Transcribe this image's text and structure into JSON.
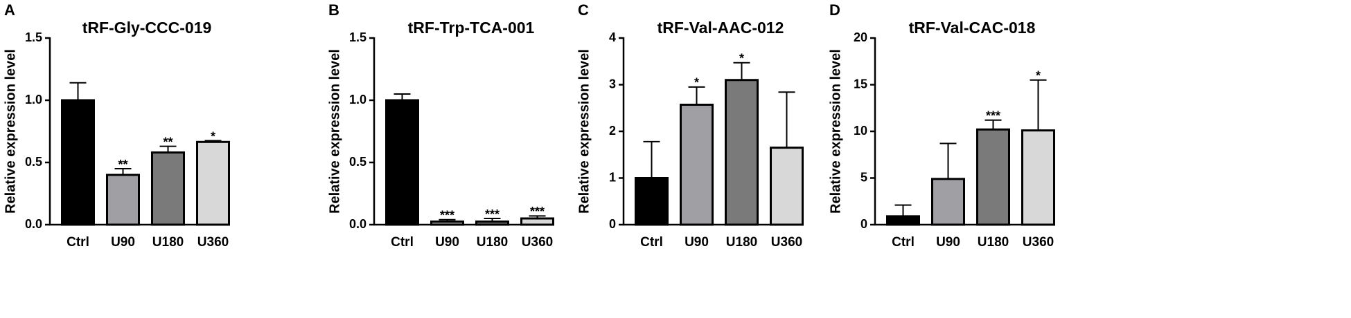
{
  "chart_data": [
    {
      "type": "bar",
      "panel_label": "A",
      "title": "tRF-Gly-CCC-019",
      "y_label": "Relative expression level",
      "categories": [
        "Ctrl",
        "U90",
        "U180",
        "U360"
      ],
      "values": [
        1.0,
        0.4,
        0.58,
        0.665
      ],
      "errors": [
        0.14,
        0.05,
        0.05,
        0.01
      ],
      "significance": [
        null,
        "**",
        "**",
        "*"
      ],
      "colors": [
        "#000000",
        "#a0a0a4",
        "#7a7a7a",
        "#d8d8d8"
      ],
      "ylim": [
        0,
        1.5
      ],
      "yticks": [
        {
          "value": 0,
          "label": "0.0"
        },
        0.5,
        {
          "value": 1,
          "label": "1.0"
        },
        1.5
      ]
    },
    {
      "type": "bar",
      "panel_label": "B",
      "title": "tRF-Trp-TCA-001",
      "y_label": "Relative expression level",
      "categories": [
        "Ctrl",
        "U90",
        "U180",
        "U360"
      ],
      "values": [
        1.0,
        0.025,
        0.025,
        0.05
      ],
      "errors": [
        0.05,
        0.015,
        0.025,
        0.02
      ],
      "significance": [
        null,
        "***",
        "***",
        "***"
      ],
      "colors": [
        "#000000",
        "#a0a0a4",
        "#7a7a7a",
        "#d8d8d8"
      ],
      "ylim": [
        0,
        1.5
      ],
      "yticks": [
        {
          "value": 0,
          "label": "0.0"
        },
        0.5,
        {
          "value": 1,
          "label": "1.0"
        },
        1.5
      ]
    },
    {
      "type": "bar",
      "panel_label": "C",
      "title": "tRF-Val-AAC-012",
      "y_label": "Relative expression level",
      "categories": [
        "Ctrl",
        "U90",
        "U180",
        "U360"
      ],
      "values": [
        1.0,
        2.57,
        3.1,
        1.65
      ],
      "errors": [
        0.78,
        0.38,
        0.37,
        1.19
      ],
      "significance": [
        null,
        "*",
        "*",
        null
      ],
      "colors": [
        "#000000",
        "#a0a0a4",
        "#7a7a7a",
        "#d8d8d8"
      ],
      "ylim": [
        0,
        4
      ],
      "yticks": [
        0,
        1,
        2,
        3,
        4
      ]
    },
    {
      "type": "bar",
      "panel_label": "D",
      "title": "tRF-Val-CAC-018",
      "y_label": "Relative expression level",
      "categories": [
        "Ctrl",
        "U90",
        "U180",
        "U360"
      ],
      "values": [
        0.9,
        4.9,
        10.2,
        10.1
      ],
      "errors": [
        1.2,
        3.8,
        1.0,
        5.4
      ],
      "significance": [
        null,
        null,
        "***",
        "*"
      ],
      "colors": [
        "#000000",
        "#a0a0a4",
        "#7a7a7a",
        "#d8d8d8"
      ],
      "ylim": [
        0,
        20
      ],
      "yticks": [
        0,
        5,
        10,
        15,
        20
      ]
    }
  ]
}
